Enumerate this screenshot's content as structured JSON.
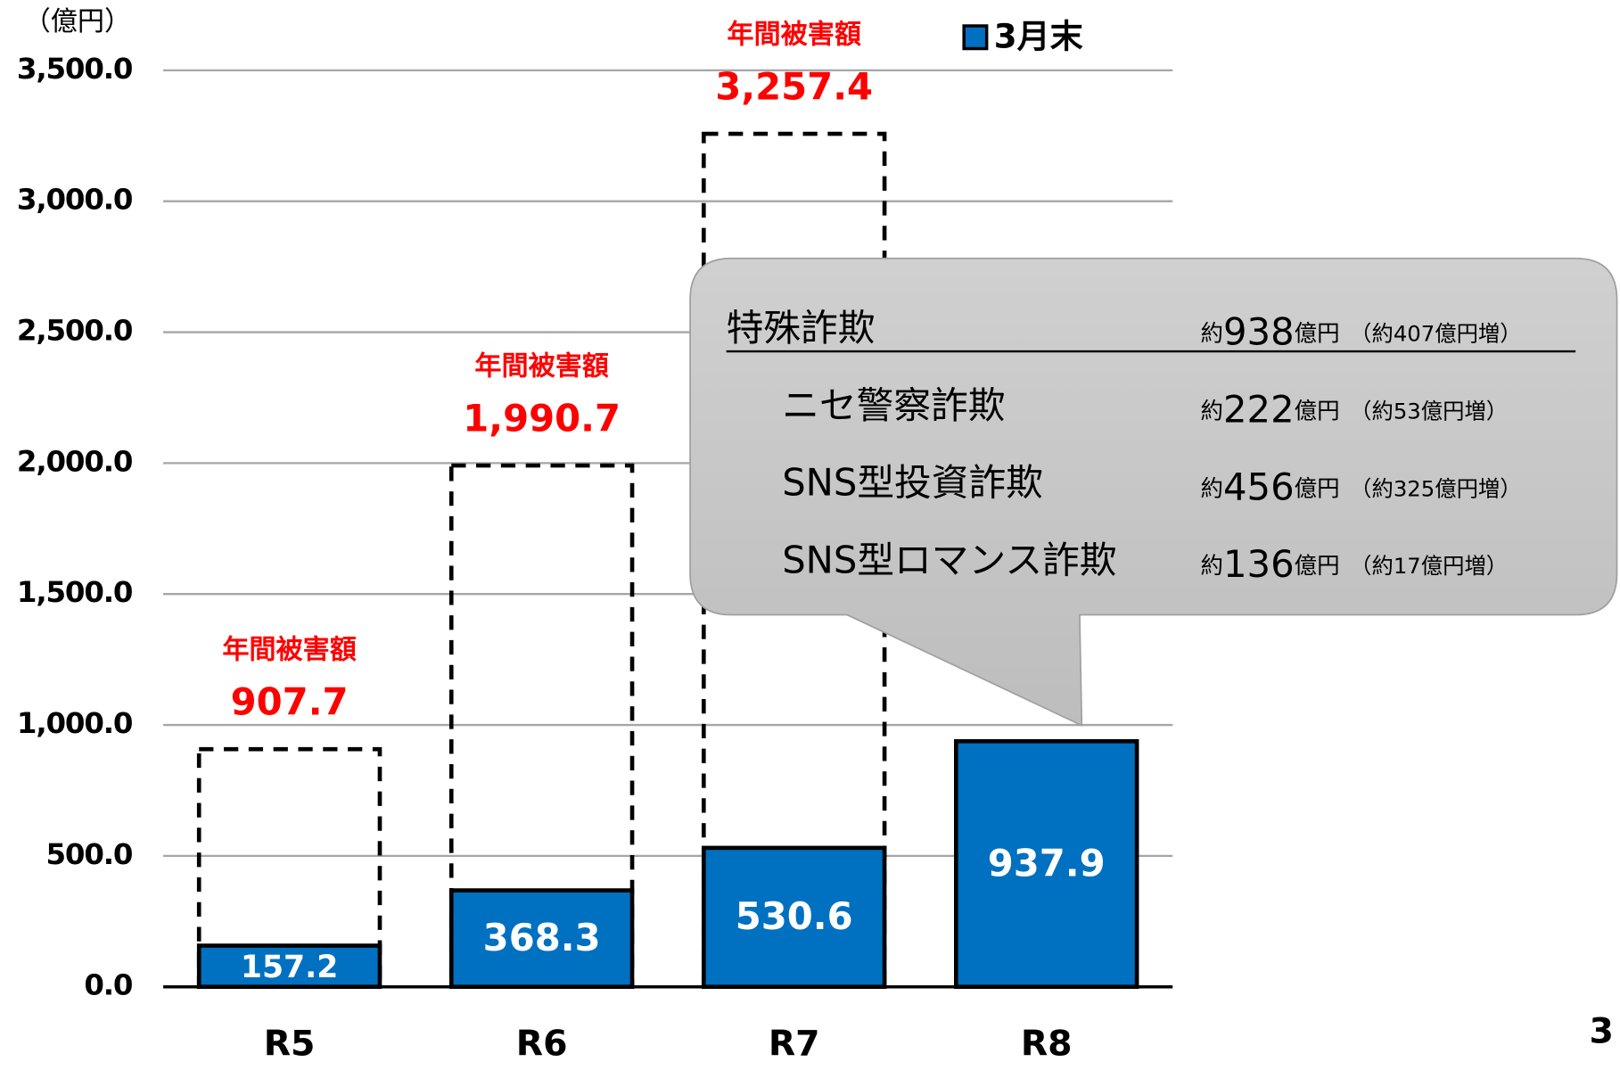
{
  "chart_data": {
    "type": "bar",
    "unit_label": "（億円）",
    "categories": [
      "R5",
      "R6",
      "R7",
      "R8"
    ],
    "series": [
      {
        "name": "3月末",
        "color": "#0070c0",
        "values": [
          157.2,
          368.3,
          530.6,
          937.9
        ]
      }
    ],
    "annual": {
      "label": "年間被害額",
      "color": "#ff0000",
      "values": [
        907.7,
        1990.7,
        3257.4,
        null
      ],
      "value_labels": [
        "907.7",
        "1,990.7",
        "3,257.4",
        null
      ]
    },
    "ylim": [
      0,
      3500
    ],
    "yticks": [
      {
        "value": 0,
        "label": "0.0"
      },
      {
        "value": 500,
        "label": "500.0"
      },
      {
        "value": 1000,
        "label": "1,000.0"
      },
      {
        "value": 1500,
        "label": "1,500.0"
      },
      {
        "value": 2000,
        "label": "2,000.0"
      },
      {
        "value": 2500,
        "label": "2,500.0"
      },
      {
        "value": 3000,
        "label": "3,000.0"
      },
      {
        "value": 3500,
        "label": "3,500.0"
      }
    ],
    "grid": true,
    "legend": "top-right"
  },
  "callout": {
    "rows": [
      {
        "label": "特殊詐欺",
        "prefix": "約",
        "amount": 938,
        "unit": "億円",
        "change": "（約407億円増）"
      },
      {
        "label": "ニセ警察詐欺",
        "prefix": "約",
        "amount": 222,
        "unit": "億円",
        "change": "（約53億円増）"
      },
      {
        "label": "SNS型投資詐欺",
        "prefix": "約",
        "amount": 456,
        "unit": "億円",
        "change": "（約325億円増）"
      },
      {
        "label": "SNS型ロマンス詐欺",
        "prefix": "約",
        "amount": 136,
        "unit": "億円",
        "change": "（約17億円増）"
      }
    ]
  },
  "page_number": "3"
}
